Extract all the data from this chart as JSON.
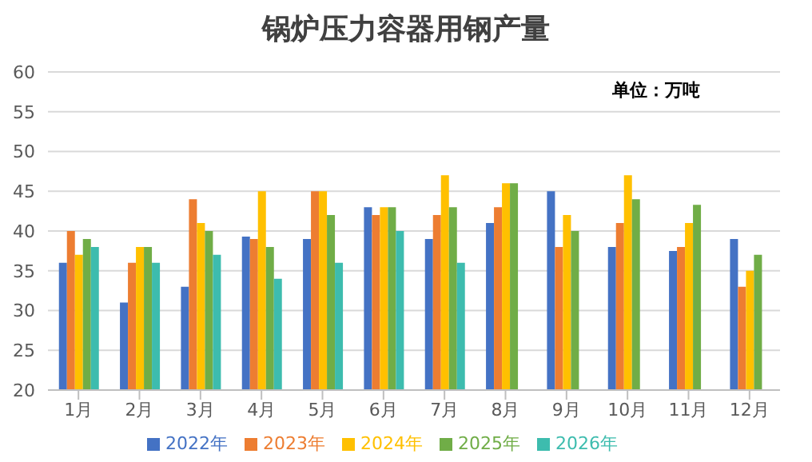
{
  "chart_data": {
    "type": "bar",
    "title": "锅炉压力容器用钢产量",
    "annotations": [
      "单位：万吨"
    ],
    "categories": [
      "1月",
      "2月",
      "3月",
      "4月",
      "5月",
      "6月",
      "7月",
      "8月",
      "9月",
      "10月",
      "11月",
      "12月"
    ],
    "series": [
      {
        "name": "2022年",
        "color": "#4472c4",
        "values": [
          36,
          31,
          33,
          39.3,
          39,
          43,
          39,
          41,
          45,
          38,
          37.5,
          39
        ]
      },
      {
        "name": "2023年",
        "color": "#ed7d31",
        "values": [
          40,
          36,
          44,
          39,
          45,
          42,
          42,
          43,
          38,
          41,
          38,
          33
        ]
      },
      {
        "name": "2024年",
        "color": "#ffc000",
        "values": [
          37,
          38,
          41,
          45,
          45,
          43,
          47,
          46,
          42,
          47,
          41,
          35
        ]
      },
      {
        "name": "2025年",
        "color": "#70ad47",
        "values": [
          39,
          38,
          40,
          38,
          42,
          43,
          43,
          46,
          40,
          44,
          43.3,
          37
        ]
      },
      {
        "name": "2026年",
        "color": "#3dbcae",
        "values": [
          38,
          36,
          37,
          34,
          36,
          40,
          36,
          null,
          null,
          null,
          null,
          null
        ]
      }
    ],
    "ylim": [
      20,
      60
    ],
    "yticks": [
      20,
      25,
      30,
      35,
      40,
      45,
      50,
      55,
      60
    ],
    "grid": "y",
    "legend": "bottom"
  }
}
